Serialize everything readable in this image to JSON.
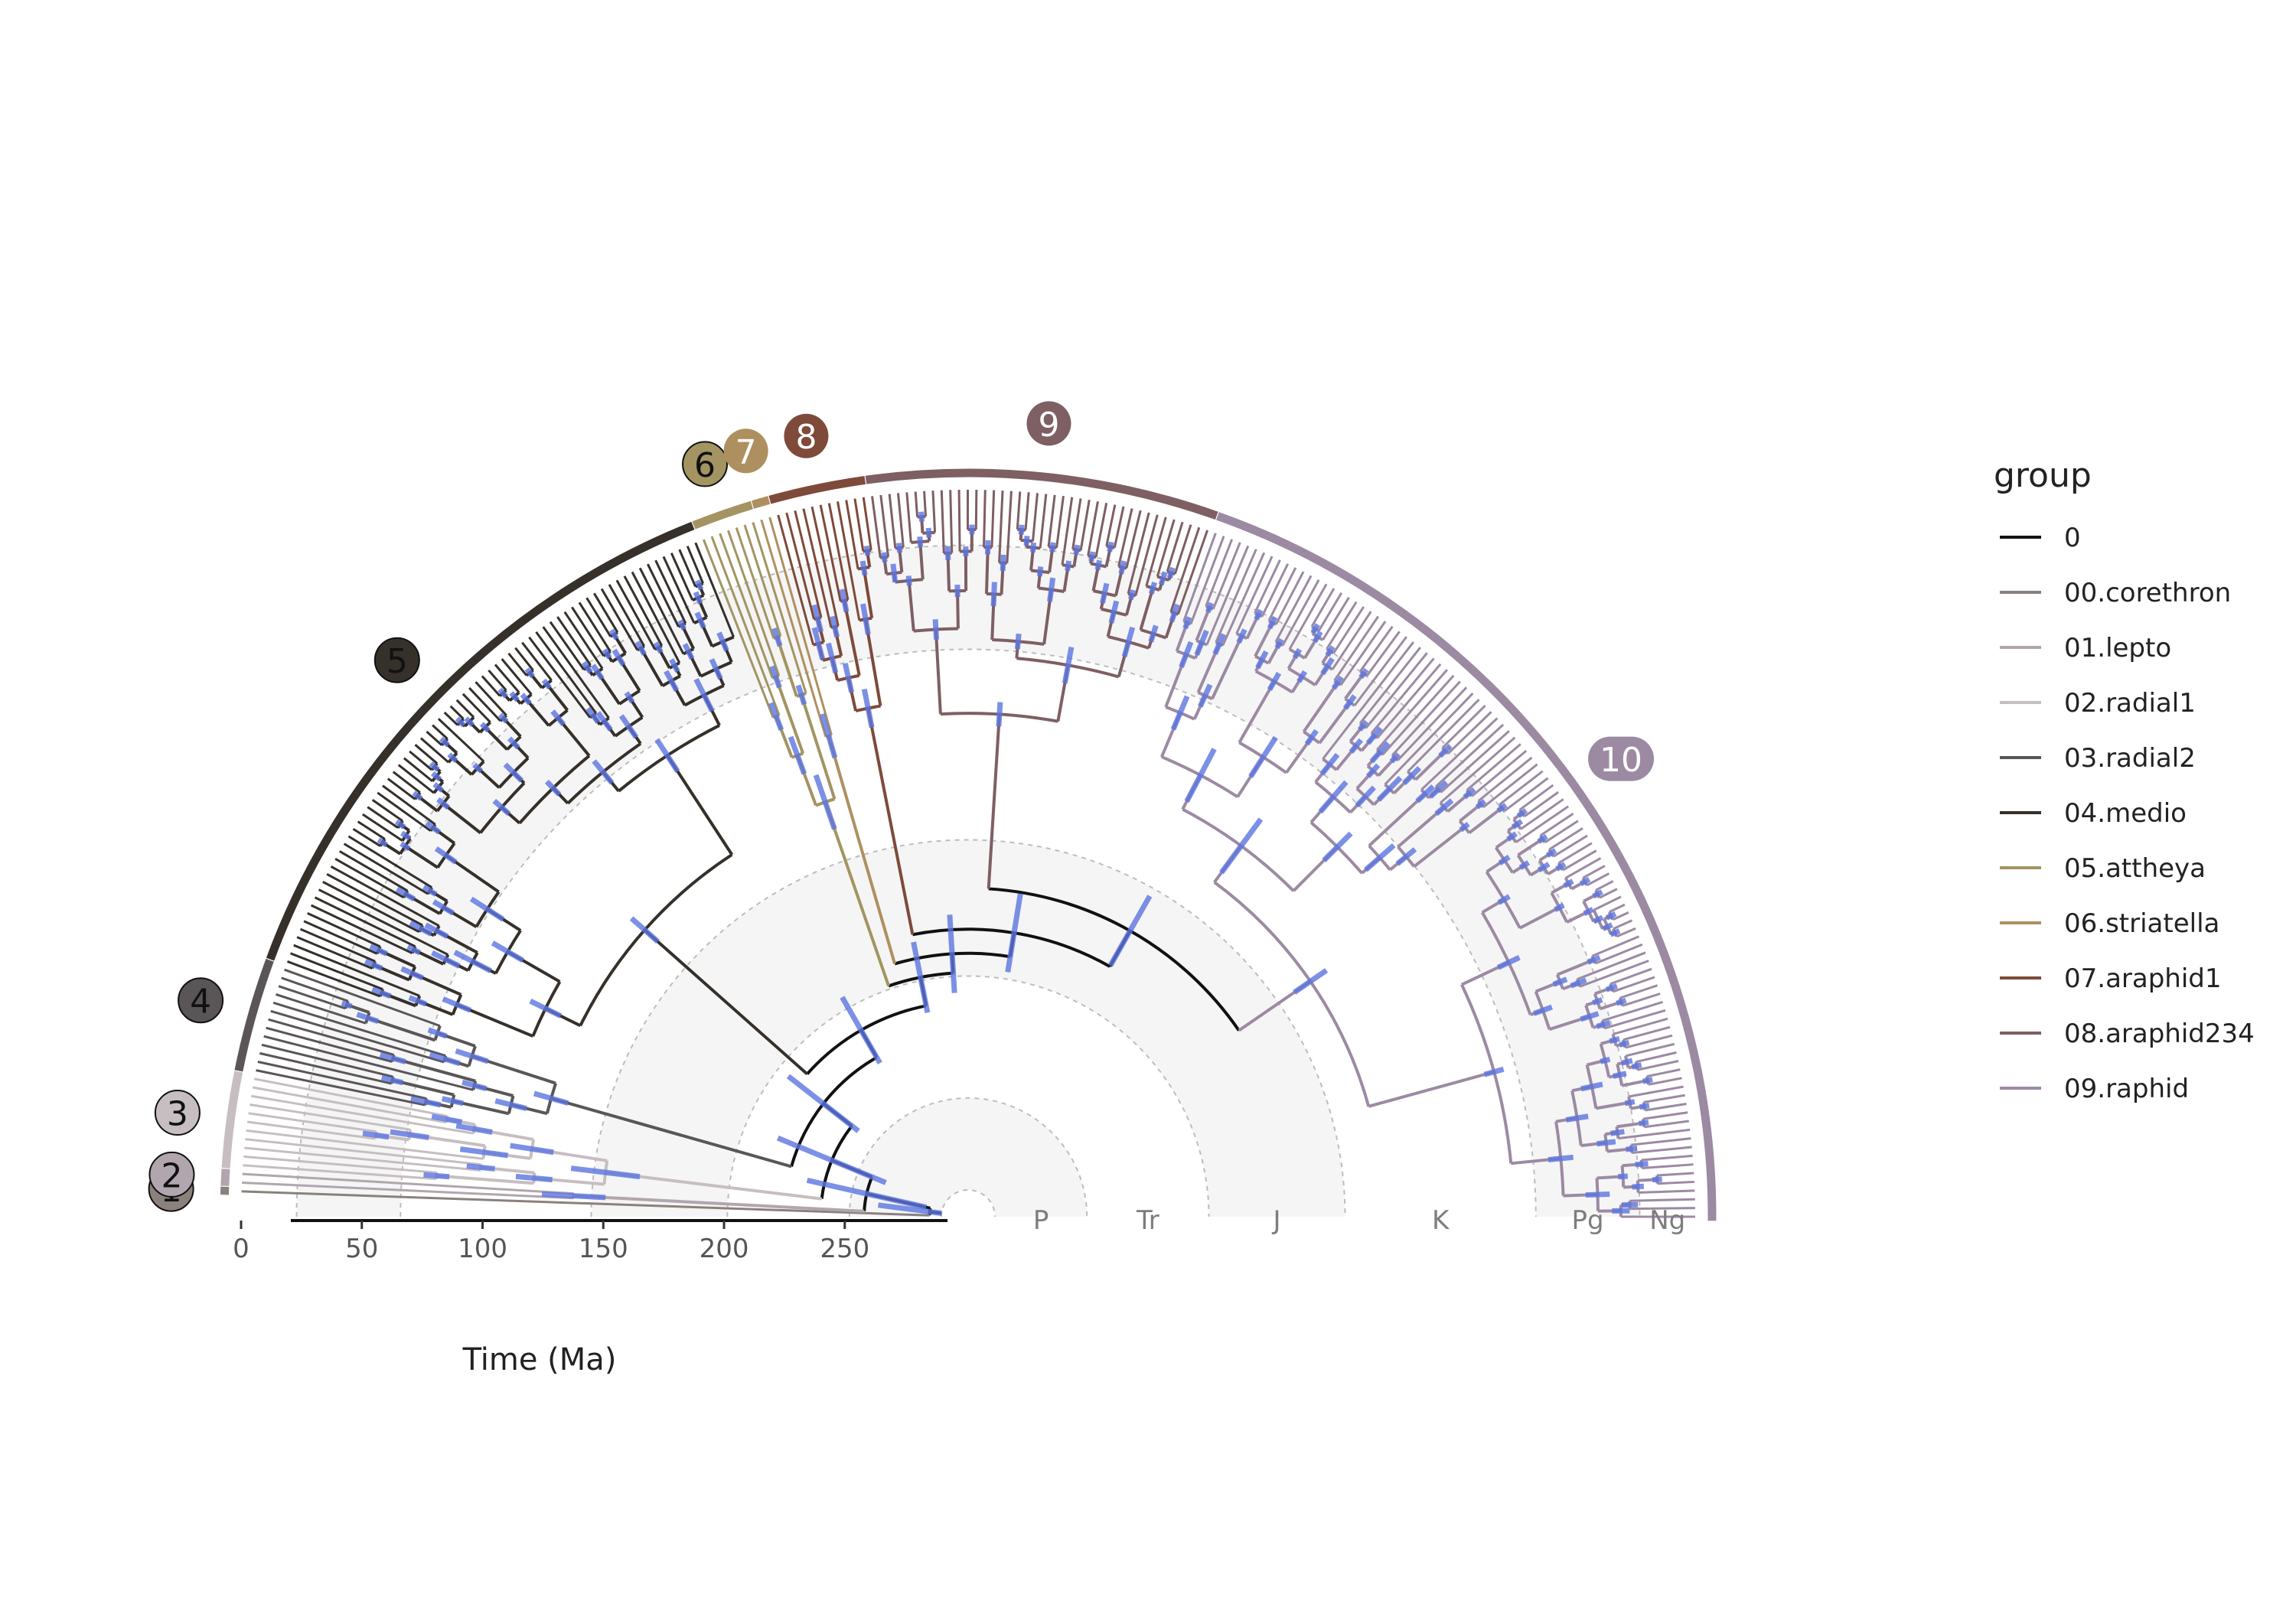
{
  "chart_data": {
    "type": "phylogenetic-tree",
    "layout": "half-circular",
    "axis": {
      "title": "Time (Ma)",
      "ticks": [
        0,
        50,
        100,
        150,
        200,
        250
      ],
      "range_ma": [
        0,
        290
      ]
    },
    "eras": [
      {
        "label": "P",
        "from_ma": 298.9,
        "to_ma": 251.9
      },
      {
        "label": "Tr",
        "from_ma": 251.9,
        "to_ma": 201.4
      },
      {
        "label": "J",
        "from_ma": 201.4,
        "to_ma": 145.0
      },
      {
        "label": "K",
        "from_ma": 145.0,
        "to_ma": 66.0
      },
      {
        "label": "Pg",
        "from_ma": 66.0,
        "to_ma": 23.0
      },
      {
        "label": "Ng",
        "from_ma": 23.0,
        "to_ma": 0
      }
    ],
    "legend": {
      "title": "group",
      "placement": "right",
      "entries": [
        {
          "label": "0",
          "color": "#111111"
        },
        {
          "label": "00.corethron",
          "color": "#8a817c"
        },
        {
          "label": "01.lepto",
          "color": "#b1a6ad"
        },
        {
          "label": "02.radial1",
          "color": "#c6bec0"
        },
        {
          "label": "03.radial2",
          "color": "#5a5658"
        },
        {
          "label": "04.medio",
          "color": "#36302a"
        },
        {
          "label": "05.attheya",
          "color": "#a39462"
        },
        {
          "label": "06.striatella",
          "color": "#ae9060"
        },
        {
          "label": "07.araphid1",
          "color": "#7e4a3a"
        },
        {
          "label": "08.araphid234",
          "color": "#7e5f63"
        },
        {
          "label": "09.raphid",
          "color": "#9c8aa3"
        }
      ]
    },
    "clades": [
      {
        "label": "1",
        "group": "00.corethron",
        "tips": 1,
        "bg": "#8a817c",
        "fg": "#111111"
      },
      {
        "label": "2",
        "group": "01.lepto",
        "tips": 2,
        "bg": "#b1a6ad",
        "fg": "#111111"
      },
      {
        "label": "3",
        "group": "02.radial1",
        "tips": 11,
        "bg": "#c6bec0",
        "fg": "#111111"
      },
      {
        "label": "4",
        "group": "03.radial2",
        "tips": 13,
        "bg": "#5a5658",
        "fg": "#111111"
      },
      {
        "label": "5",
        "group": "04.medio",
        "tips": 70,
        "bg": "#36302a",
        "fg": "#111111"
      },
      {
        "label": "6",
        "group": "05.attheya",
        "tips": 7,
        "bg": "#a39462",
        "fg": "#111111"
      },
      {
        "label": "7",
        "group": "06.striatella",
        "tips": 2,
        "bg": "#ae9060",
        "fg": "#ffffff"
      },
      {
        "label": "8",
        "group": "07.araphid1",
        "tips": 11,
        "bg": "#7e4a3a",
        "fg": "#ffffff"
      },
      {
        "label": "9",
        "group": "08.araphid234",
        "tips": 40,
        "bg": "#7e5f63",
        "fg": "#ffffff"
      },
      {
        "label": "10",
        "group": "09.raphid",
        "tips": 103,
        "bg": "#9c8aa3",
        "fg": "#ffffff"
      }
    ],
    "root_age_ma": 290,
    "interval_color": "#5b74e0",
    "backbone_ages_ma": [
      285,
      258,
      240,
      225,
      212,
      200,
      192,
      182,
      165,
      150,
      140,
      118,
      95
    ]
  }
}
